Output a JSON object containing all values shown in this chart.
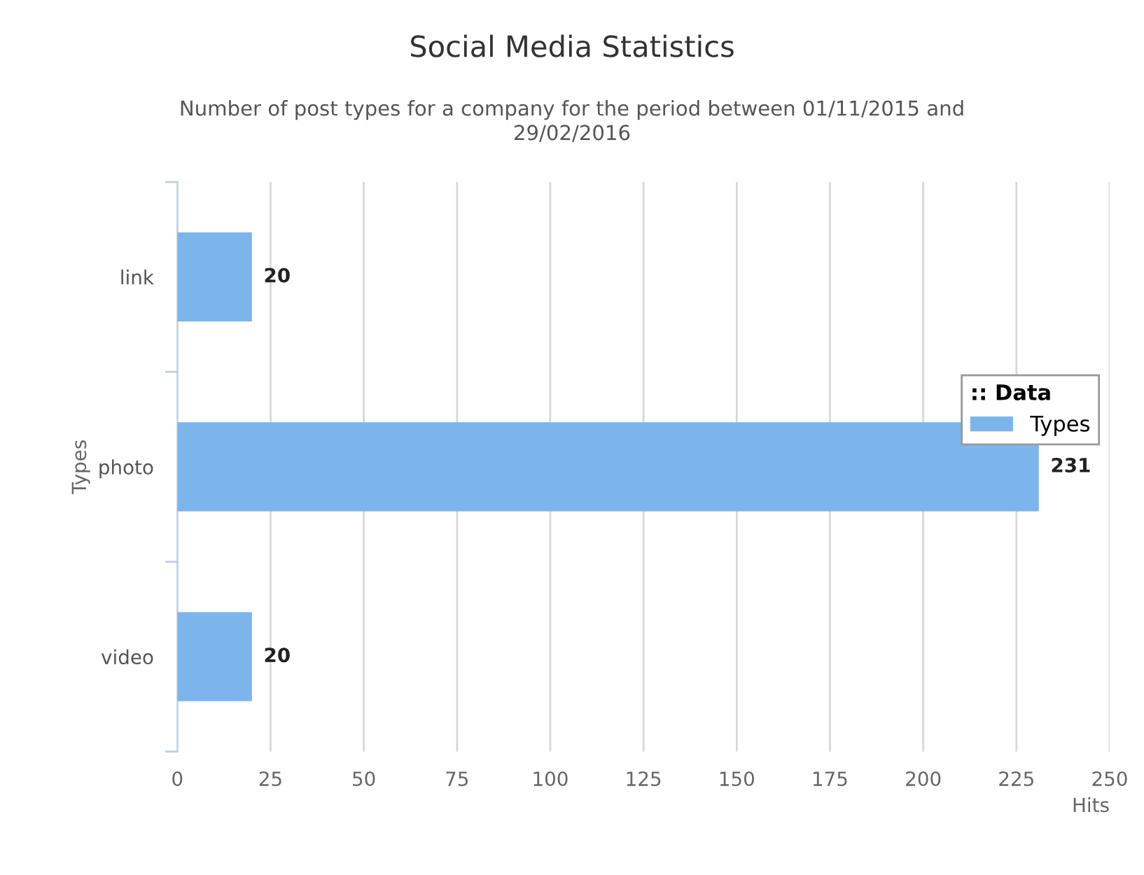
{
  "chart_data": {
    "type": "bar",
    "orientation": "horizontal",
    "title": "Social Media Statistics",
    "subtitle": "Number of post types for a company for the period between 01/11/2015 and\n29/02/2016",
    "xlabel": "Hits",
    "ylabel": "Types",
    "legend_title": ":: Data",
    "categories": [
      "link",
      "photo",
      "video"
    ],
    "series": [
      {
        "name": "Types",
        "color": "#7cb5ec",
        "values": [
          20,
          231,
          20
        ]
      }
    ],
    "xlim": [
      0,
      250
    ],
    "xticks": [
      0,
      25,
      50,
      75,
      100,
      125,
      150,
      175,
      200,
      225,
      250
    ],
    "grid": "x",
    "legend": "right",
    "data_labels": true
  }
}
